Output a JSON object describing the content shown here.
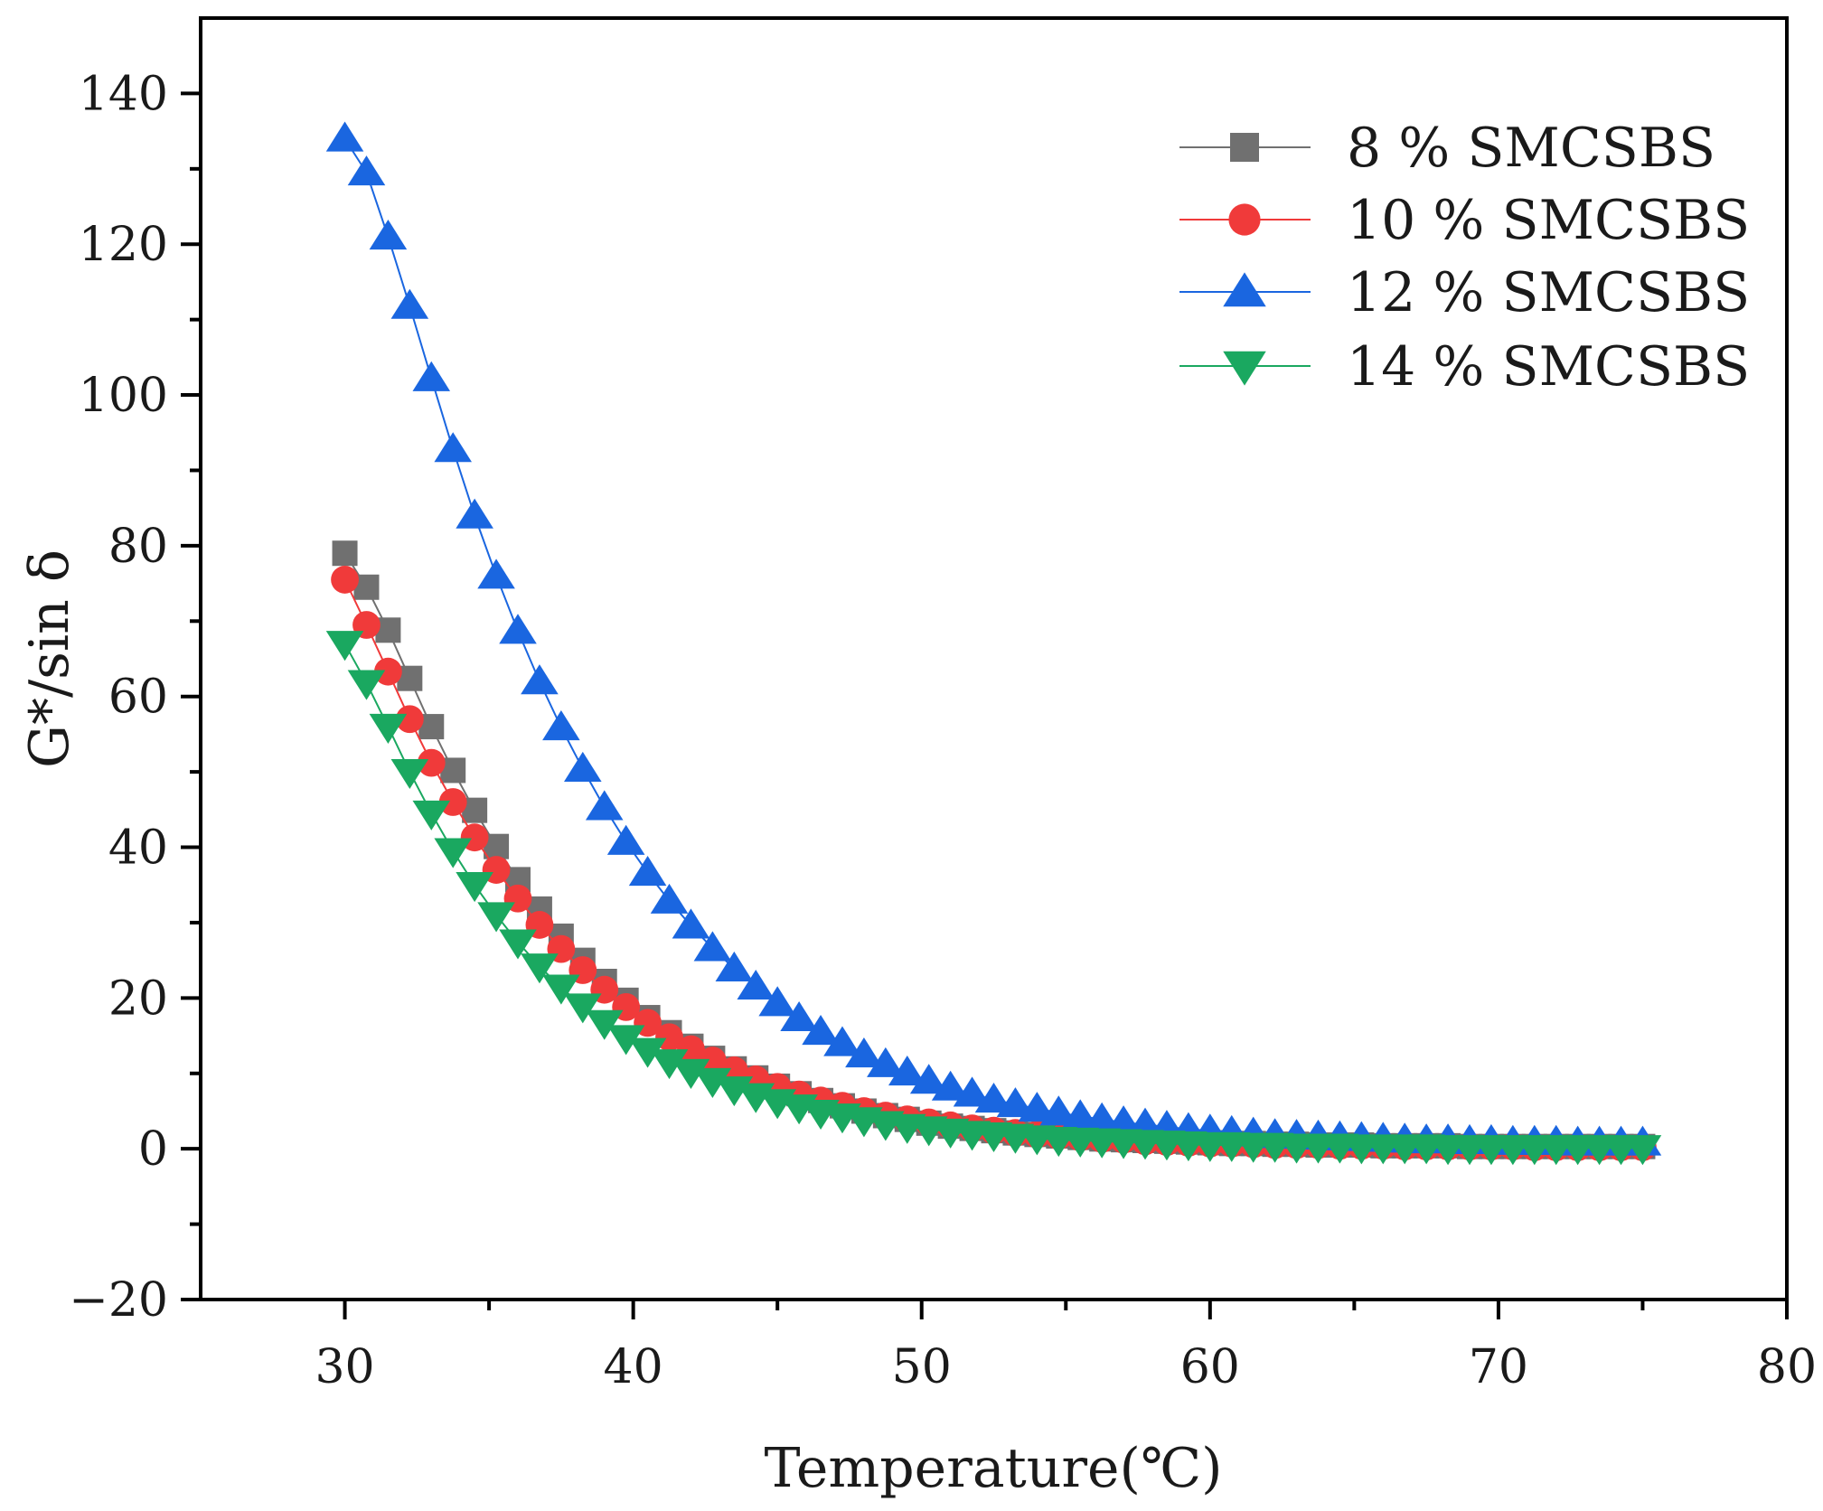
{
  "chart_data": {
    "type": "line",
    "xlabel": "Temperature(℃)",
    "ylabel": "G*/sin δ",
    "xlim": [
      25,
      80
    ],
    "ylim": [
      -20,
      150
    ],
    "xticks": [
      30,
      40,
      50,
      60,
      70,
      80
    ],
    "xtick_labels": [
      "30",
      "40",
      "50",
      "60",
      "70",
      "80"
    ],
    "yticks": [
      -20,
      0,
      20,
      40,
      60,
      80,
      100,
      120,
      140
    ],
    "ytick_labels": [
      "−20",
      "0",
      "20",
      "40",
      "60",
      "80",
      "100",
      "120",
      "140"
    ],
    "grid": false,
    "legend_position": "top-right",
    "x": [
      30,
      30.75,
      31.5,
      32.25,
      33,
      33.75,
      34.5,
      35.25,
      36,
      36.75,
      37.5,
      38.25,
      39,
      39.75,
      40.5,
      41.25,
      42,
      42.75,
      43.5,
      44.25,
      45,
      45.75,
      46.5,
      47.25,
      48,
      48.75,
      49.5,
      50.25,
      51,
      51.75,
      52.5,
      53.25,
      54,
      54.75,
      55.5,
      56.25,
      57,
      57.75,
      58.5,
      59.25,
      60,
      60.75,
      61.5,
      62.25,
      63,
      63.75,
      64.5,
      65.25,
      66,
      66.75,
      67.5,
      68.25,
      69,
      69.75,
      70.5,
      71.25,
      72,
      72.75,
      73.5,
      74.25,
      75
    ],
    "series": [
      {
        "name": "8 % SMCSBS",
        "color": "#707070",
        "marker": "square",
        "values": [
          79.0,
          74.5,
          68.8,
          62.4,
          56.0,
          50.2,
          44.9,
          40.1,
          35.7,
          31.8,
          28.2,
          25.0,
          22.2,
          19.7,
          17.4,
          15.4,
          13.6,
          12.0,
          10.6,
          9.4,
          8.3,
          7.3,
          6.4,
          5.7,
          5.0,
          4.4,
          3.9,
          3.4,
          3.0,
          2.7,
          2.4,
          2.1,
          1.9,
          1.7,
          1.5,
          1.3,
          1.2,
          1.1,
          1.0,
          0.9,
          0.8,
          0.7,
          0.7,
          0.6,
          0.6,
          0.5,
          0.5,
          0.5,
          0.4,
          0.4,
          0.4,
          0.4,
          0.3,
          0.3,
          0.3,
          0.3,
          0.3,
          0.3,
          0.3,
          0.3,
          0.3
        ]
      },
      {
        "name": "10 % SMCSBS",
        "color": "#f03a3a",
        "marker": "circle",
        "values": [
          75.5,
          69.5,
          63.3,
          57.0,
          51.2,
          46.0,
          41.3,
          37.0,
          33.2,
          29.7,
          26.5,
          23.7,
          21.1,
          18.8,
          16.7,
          14.8,
          13.2,
          11.7,
          10.4,
          9.2,
          8.2,
          7.2,
          6.4,
          5.7,
          5.0,
          4.4,
          3.9,
          3.5,
          3.1,
          2.7,
          2.4,
          2.1,
          1.9,
          1.7,
          1.5,
          1.3,
          1.2,
          1.0,
          0.9,
          0.8,
          0.7,
          0.7,
          0.6,
          0.5,
          0.5,
          0.5,
          0.4,
          0.4,
          0.4,
          0.3,
          0.3,
          0.3,
          0.3,
          0.3,
          0.3,
          0.2,
          0.2,
          0.2,
          0.2,
          0.2,
          0.2
        ]
      },
      {
        "name": "12 % SMCSBS",
        "color": "#1a66e0",
        "marker": "triangle-up",
        "values": [
          134.0,
          129.5,
          121.0,
          111.8,
          102.2,
          92.8,
          84.0,
          76.0,
          68.7,
          62.0,
          55.9,
          50.4,
          45.3,
          40.7,
          36.6,
          32.9,
          29.6,
          26.6,
          23.9,
          21.5,
          19.3,
          17.3,
          15.5,
          14.0,
          12.5,
          11.2,
          10.1,
          9.0,
          8.1,
          7.3,
          6.5,
          5.9,
          5.3,
          4.8,
          4.3,
          3.9,
          3.5,
          3.2,
          2.9,
          2.6,
          2.4,
          2.2,
          2.0,
          1.8,
          1.7,
          1.6,
          1.5,
          1.4,
          1.3,
          1.2,
          1.1,
          1.1,
          1.0,
          1.0,
          0.9,
          0.9,
          0.9,
          0.8,
          0.8,
          0.8,
          0.8
        ]
      },
      {
        "name": "14 % SMCSBS",
        "color": "#1aa860",
        "marker": "triangle-down",
        "values": [
          67.0,
          61.8,
          56.0,
          50.0,
          44.5,
          39.5,
          35.0,
          31.0,
          27.4,
          24.2,
          21.4,
          18.9,
          16.7,
          14.7,
          13.0,
          11.5,
          10.2,
          9.0,
          7.9,
          7.0,
          6.2,
          5.5,
          4.8,
          4.3,
          3.8,
          3.3,
          2.9,
          2.6,
          2.3,
          2.0,
          1.8,
          1.6,
          1.4,
          1.2,
          1.1,
          1.0,
          0.9,
          0.8,
          0.7,
          0.6,
          0.5,
          0.5,
          0.4,
          0.4,
          0.3,
          0.3,
          0.3,
          0.2,
          0.2,
          0.2,
          0.2,
          0.1,
          0.1,
          0.1,
          0.1,
          0.1,
          0.1,
          0.1,
          0.1,
          0.1,
          0.1
        ]
      }
    ]
  }
}
